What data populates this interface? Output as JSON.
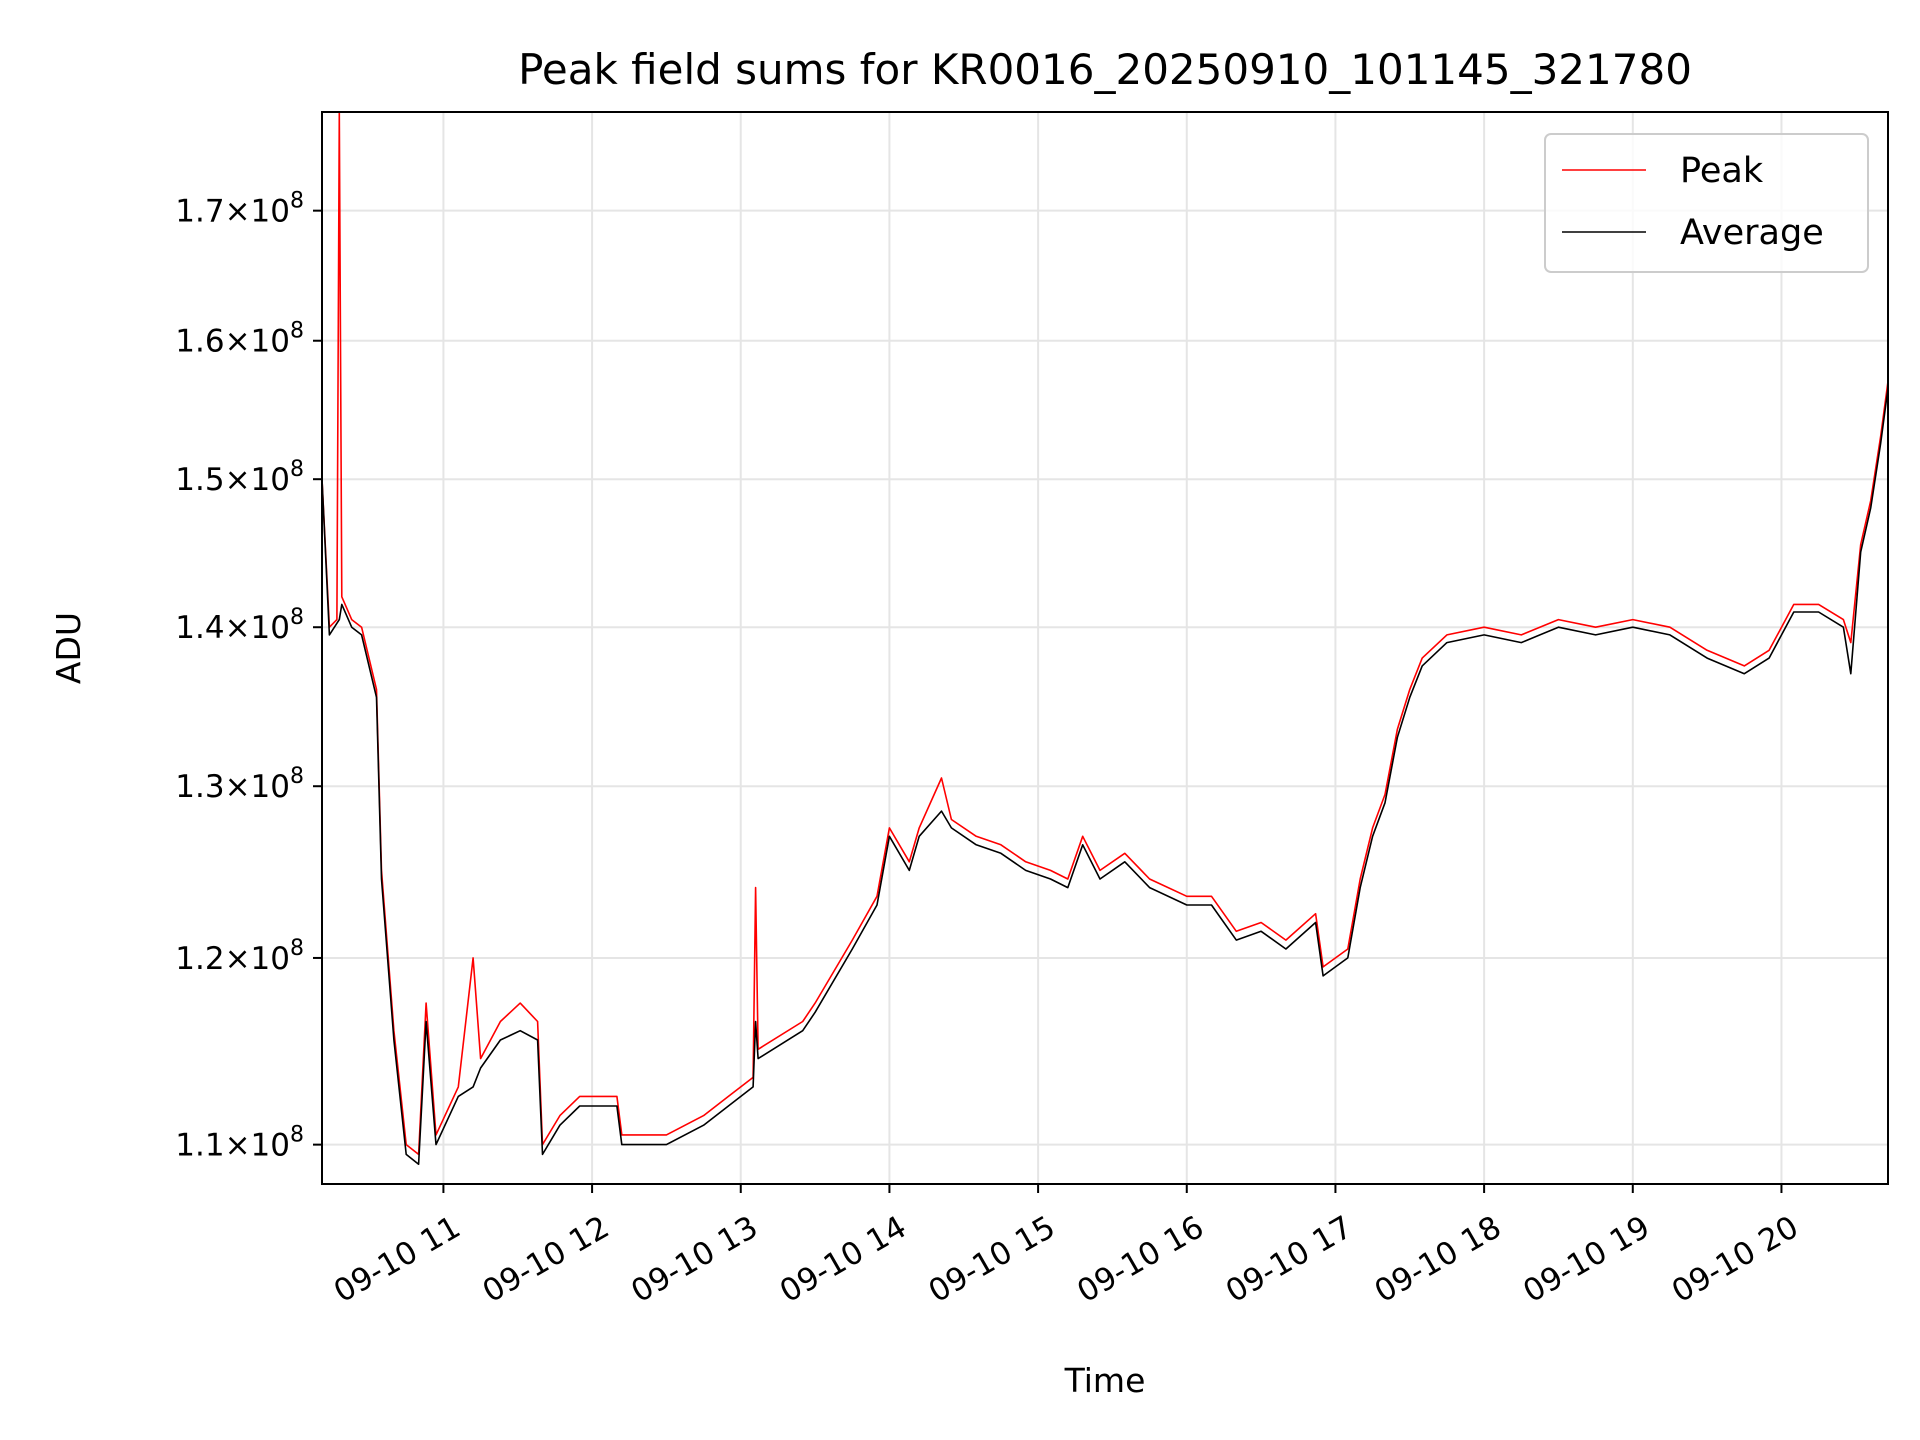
{
  "chart_data": {
    "type": "line",
    "title": "Peak field sums for KR0016_20250910_101145_321780",
    "xlabel": "Time",
    "ylabel": "ADU",
    "yscale": "log",
    "ylim": [
      108000000,
      178000000
    ],
    "xlim": [
      "2025-09-10 10:11",
      "2025-09-10 20:43"
    ],
    "grid": true,
    "legend_position": "top-right",
    "x_ticks": [
      {
        "value": "2025-09-10 11:00",
        "label": "09-10 11"
      },
      {
        "value": "2025-09-10 12:00",
        "label": "09-10 12"
      },
      {
        "value": "2025-09-10 13:00",
        "label": "09-10 13"
      },
      {
        "value": "2025-09-10 14:00",
        "label": "09-10 14"
      },
      {
        "value": "2025-09-10 15:00",
        "label": "09-10 15"
      },
      {
        "value": "2025-09-10 16:00",
        "label": "09-10 16"
      },
      {
        "value": "2025-09-10 17:00",
        "label": "09-10 17"
      },
      {
        "value": "2025-09-10 18:00",
        "label": "09-10 18"
      },
      {
        "value": "2025-09-10 19:00",
        "label": "09-10 19"
      },
      {
        "value": "2025-09-10 20:00",
        "label": "09-10 20"
      }
    ],
    "y_ticks": [
      {
        "value": 110000000,
        "mantissa": "1.1",
        "base": "10",
        "exp": "8"
      },
      {
        "value": 120000000,
        "mantissa": "1.2",
        "base": "10",
        "exp": "8"
      },
      {
        "value": 130000000,
        "mantissa": "1.3",
        "base": "10",
        "exp": "8"
      },
      {
        "value": 140000000,
        "mantissa": "1.4",
        "base": "10",
        "exp": "8"
      },
      {
        "value": 150000000,
        "mantissa": "1.5",
        "base": "10",
        "exp": "8"
      },
      {
        "value": 160000000,
        "mantissa": "1.6",
        "base": "10",
        "exp": "8"
      },
      {
        "value": 170000000,
        "mantissa": "1.7",
        "base": "10",
        "exp": "8"
      }
    ],
    "series": [
      {
        "name": "Peak",
        "color": "#ff0000",
        "points": [
          [
            "2025-09-10 10:11",
            150000000
          ],
          [
            "2025-09-10 10:14",
            140000000
          ],
          [
            "2025-09-10 10:17",
            140500000
          ],
          [
            "2025-09-10 10:18",
            178000000
          ],
          [
            "2025-09-10 10:19",
            142000000
          ],
          [
            "2025-09-10 10:23",
            140500000
          ],
          [
            "2025-09-10 10:27",
            140000000
          ],
          [
            "2025-09-10 10:33",
            136000000
          ],
          [
            "2025-09-10 10:35",
            125000000
          ],
          [
            "2025-09-10 10:40",
            116000000
          ],
          [
            "2025-09-10 10:45",
            110000000
          ],
          [
            "2025-09-10 10:50",
            109500000
          ],
          [
            "2025-09-10 10:53",
            117500000
          ],
          [
            "2025-09-10 10:57",
            110500000
          ],
          [
            "2025-09-10 11:06",
            113000000
          ],
          [
            "2025-09-10 11:12",
            120000000
          ],
          [
            "2025-09-10 11:15",
            114500000
          ],
          [
            "2025-09-10 11:23",
            116500000
          ],
          [
            "2025-09-10 11:31",
            117500000
          ],
          [
            "2025-09-10 11:38",
            116500000
          ],
          [
            "2025-09-10 11:40",
            110000000
          ],
          [
            "2025-09-10 11:47",
            111500000
          ],
          [
            "2025-09-10 11:55",
            112500000
          ],
          [
            "2025-09-10 12:10",
            112500000
          ],
          [
            "2025-09-10 12:12",
            110500000
          ],
          [
            "2025-09-10 12:30",
            110500000
          ],
          [
            "2025-09-10 12:45",
            111500000
          ],
          [
            "2025-09-10 12:55",
            112500000
          ],
          [
            "2025-09-10 13:05",
            113500000
          ],
          [
            "2025-09-10 13:06",
            124000000
          ],
          [
            "2025-09-10 13:07",
            115000000
          ],
          [
            "2025-09-10 13:25",
            116500000
          ],
          [
            "2025-09-10 13:30",
            117500000
          ],
          [
            "2025-09-10 13:45",
            121000000
          ],
          [
            "2025-09-10 13:55",
            123500000
          ],
          [
            "2025-09-10 14:00",
            127500000
          ],
          [
            "2025-09-10 14:08",
            125500000
          ],
          [
            "2025-09-10 14:12",
            127500000
          ],
          [
            "2025-09-10 14:21",
            130500000
          ],
          [
            "2025-09-10 14:25",
            128000000
          ],
          [
            "2025-09-10 14:35",
            127000000
          ],
          [
            "2025-09-10 14:45",
            126500000
          ],
          [
            "2025-09-10 14:55",
            125500000
          ],
          [
            "2025-09-10 15:05",
            125000000
          ],
          [
            "2025-09-10 15:12",
            124500000
          ],
          [
            "2025-09-10 15:18",
            127000000
          ],
          [
            "2025-09-10 15:25",
            125000000
          ],
          [
            "2025-09-10 15:35",
            126000000
          ],
          [
            "2025-09-10 15:45",
            124500000
          ],
          [
            "2025-09-10 16:00",
            123500000
          ],
          [
            "2025-09-10 16:10",
            123500000
          ],
          [
            "2025-09-10 16:20",
            121500000
          ],
          [
            "2025-09-10 16:30",
            122000000
          ],
          [
            "2025-09-10 16:40",
            121000000
          ],
          [
            "2025-09-10 16:52",
            122500000
          ],
          [
            "2025-09-10 16:55",
            119500000
          ],
          [
            "2025-09-10 17:05",
            120500000
          ],
          [
            "2025-09-10 17:10",
            124500000
          ],
          [
            "2025-09-10 17:15",
            127500000
          ],
          [
            "2025-09-10 17:20",
            129500000
          ],
          [
            "2025-09-10 17:25",
            133500000
          ],
          [
            "2025-09-10 17:30",
            136000000
          ],
          [
            "2025-09-10 17:35",
            138000000
          ],
          [
            "2025-09-10 17:45",
            139500000
          ],
          [
            "2025-09-10 18:00",
            140000000
          ],
          [
            "2025-09-10 18:15",
            139500000
          ],
          [
            "2025-09-10 18:30",
            140500000
          ],
          [
            "2025-09-10 18:45",
            140000000
          ],
          [
            "2025-09-10 19:00",
            140500000
          ],
          [
            "2025-09-10 19:15",
            140000000
          ],
          [
            "2025-09-10 19:30",
            138500000
          ],
          [
            "2025-09-10 19:45",
            137500000
          ],
          [
            "2025-09-10 19:55",
            138500000
          ],
          [
            "2025-09-10 20:05",
            141500000
          ],
          [
            "2025-09-10 20:15",
            141500000
          ],
          [
            "2025-09-10 20:25",
            140500000
          ],
          [
            "2025-09-10 20:28",
            139000000
          ],
          [
            "2025-09-10 20:32",
            145500000
          ],
          [
            "2025-09-10 20:36",
            148500000
          ],
          [
            "2025-09-10 20:40",
            153000000
          ],
          [
            "2025-09-10 20:43",
            157000000
          ]
        ]
      },
      {
        "name": "Average",
        "color": "#000000",
        "points": [
          [
            "2025-09-10 10:11",
            150000000
          ],
          [
            "2025-09-10 10:14",
            139500000
          ],
          [
            "2025-09-10 10:18",
            140500000
          ],
          [
            "2025-09-10 10:19",
            141500000
          ],
          [
            "2025-09-10 10:23",
            140000000
          ],
          [
            "2025-09-10 10:27",
            139500000
          ],
          [
            "2025-09-10 10:33",
            135500000
          ],
          [
            "2025-09-10 10:35",
            124500000
          ],
          [
            "2025-09-10 10:40",
            115500000
          ],
          [
            "2025-09-10 10:45",
            109500000
          ],
          [
            "2025-09-10 10:50",
            109000000
          ],
          [
            "2025-09-10 10:53",
            116500000
          ],
          [
            "2025-09-10 10:57",
            110000000
          ],
          [
            "2025-09-10 11:06",
            112500000
          ],
          [
            "2025-09-10 11:12",
            113000000
          ],
          [
            "2025-09-10 11:15",
            114000000
          ],
          [
            "2025-09-10 11:23",
            115500000
          ],
          [
            "2025-09-10 11:31",
            116000000
          ],
          [
            "2025-09-10 11:38",
            115500000
          ],
          [
            "2025-09-10 11:40",
            109500000
          ],
          [
            "2025-09-10 11:47",
            111000000
          ],
          [
            "2025-09-10 11:55",
            112000000
          ],
          [
            "2025-09-10 12:10",
            112000000
          ],
          [
            "2025-09-10 12:12",
            110000000
          ],
          [
            "2025-09-10 12:30",
            110000000
          ],
          [
            "2025-09-10 12:45",
            111000000
          ],
          [
            "2025-09-10 12:55",
            112000000
          ],
          [
            "2025-09-10 13:05",
            113000000
          ],
          [
            "2025-09-10 13:06",
            116500000
          ],
          [
            "2025-09-10 13:07",
            114500000
          ],
          [
            "2025-09-10 13:25",
            116000000
          ],
          [
            "2025-09-10 13:30",
            117000000
          ],
          [
            "2025-09-10 13:45",
            120500000
          ],
          [
            "2025-09-10 13:55",
            123000000
          ],
          [
            "2025-09-10 14:00",
            127000000
          ],
          [
            "2025-09-10 14:08",
            125000000
          ],
          [
            "2025-09-10 14:12",
            127000000
          ],
          [
            "2025-09-10 14:21",
            128500000
          ],
          [
            "2025-09-10 14:25",
            127500000
          ],
          [
            "2025-09-10 14:35",
            126500000
          ],
          [
            "2025-09-10 14:45",
            126000000
          ],
          [
            "2025-09-10 14:55",
            125000000
          ],
          [
            "2025-09-10 15:05",
            124500000
          ],
          [
            "2025-09-10 15:12",
            124000000
          ],
          [
            "2025-09-10 15:18",
            126500000
          ],
          [
            "2025-09-10 15:25",
            124500000
          ],
          [
            "2025-09-10 15:35",
            125500000
          ],
          [
            "2025-09-10 15:45",
            124000000
          ],
          [
            "2025-09-10 16:00",
            123000000
          ],
          [
            "2025-09-10 16:10",
            123000000
          ],
          [
            "2025-09-10 16:20",
            121000000
          ],
          [
            "2025-09-10 16:30",
            121500000
          ],
          [
            "2025-09-10 16:40",
            120500000
          ],
          [
            "2025-09-10 16:52",
            122000000
          ],
          [
            "2025-09-10 16:55",
            119000000
          ],
          [
            "2025-09-10 17:05",
            120000000
          ],
          [
            "2025-09-10 17:10",
            124000000
          ],
          [
            "2025-09-10 17:15",
            127000000
          ],
          [
            "2025-09-10 17:20",
            129000000
          ],
          [
            "2025-09-10 17:25",
            133000000
          ],
          [
            "2025-09-10 17:30",
            135500000
          ],
          [
            "2025-09-10 17:35",
            137500000
          ],
          [
            "2025-09-10 17:45",
            139000000
          ],
          [
            "2025-09-10 18:00",
            139500000
          ],
          [
            "2025-09-10 18:15",
            139000000
          ],
          [
            "2025-09-10 18:30",
            140000000
          ],
          [
            "2025-09-10 18:45",
            139500000
          ],
          [
            "2025-09-10 19:00",
            140000000
          ],
          [
            "2025-09-10 19:15",
            139500000
          ],
          [
            "2025-09-10 19:30",
            138000000
          ],
          [
            "2025-09-10 19:45",
            137000000
          ],
          [
            "2025-09-10 19:55",
            138000000
          ],
          [
            "2025-09-10 20:05",
            141000000
          ],
          [
            "2025-09-10 20:15",
            141000000
          ],
          [
            "2025-09-10 20:25",
            140000000
          ],
          [
            "2025-09-10 20:28",
            137000000
          ],
          [
            "2025-09-10 20:32",
            145000000
          ],
          [
            "2025-09-10 20:36",
            148000000
          ],
          [
            "2025-09-10 20:40",
            152500000
          ],
          [
            "2025-09-10 20:43",
            156500000
          ]
        ]
      }
    ]
  }
}
